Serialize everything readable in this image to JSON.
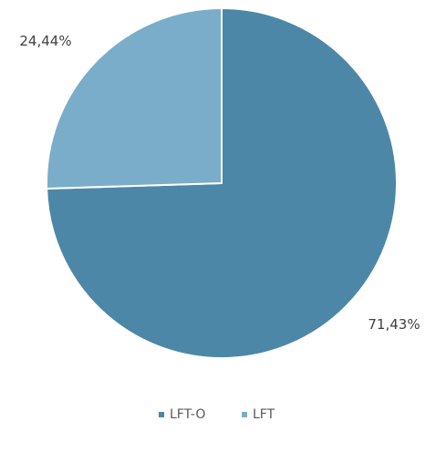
{
  "chart_data": {
    "type": "pie",
    "title": "",
    "slices": [
      {
        "label": "LFT-O",
        "value": 71.43,
        "display": "71,43%",
        "color": "#4d87a8"
      },
      {
        "label": "LFT",
        "value": 24.44,
        "display": "24,44%",
        "color": "#79adc9"
      }
    ],
    "start_angle_deg": 0,
    "direction": "clockwise",
    "legend_position": "bottom"
  }
}
